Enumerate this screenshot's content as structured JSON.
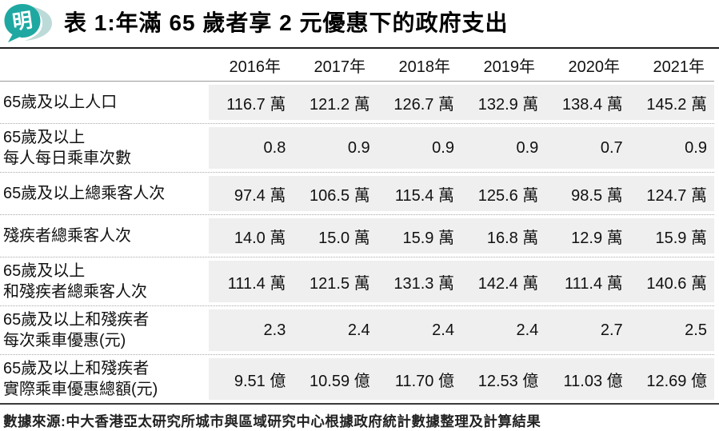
{
  "logo": {
    "char": "明"
  },
  "title": "表 1:年滿 65 歲者享 2 元優惠下的政府支出",
  "source": "數據來源:中大香港亞太研究所城市與區域研究中心根據政府統計數據整理及計算結果",
  "colors": {
    "logo_teal": "#1fa8a2",
    "logo_swoosh": "#bcdad8",
    "row_background": "#efefef",
    "rule_dark": "#1f1f1f"
  },
  "chart_data": {
    "type": "table",
    "title": "表 1:年滿 65 歲者享 2 元優惠下的政府支出",
    "columns": [
      "2016年",
      "2017年",
      "2018年",
      "2019年",
      "2020年",
      "2021年"
    ],
    "rows": [
      {
        "label_lines": [
          "65歲及以上人口"
        ],
        "values": [
          "116.7 萬",
          "121.2 萬",
          "126.7 萬",
          "132.9 萬",
          "138.4 萬",
          "145.2 萬"
        ]
      },
      {
        "label_lines": [
          "65歲及以上",
          "每人每日乘車次數"
        ],
        "values": [
          "0.8",
          "0.9",
          "0.9",
          "0.9",
          "0.7",
          "0.9"
        ]
      },
      {
        "label_lines": [
          "65歲及以上總乘客人次"
        ],
        "values": [
          "97.4 萬",
          "106.5 萬",
          "115.4 萬",
          "125.6 萬",
          "98.5 萬",
          "124.7 萬"
        ]
      },
      {
        "label_lines": [
          "殘疾者總乘客人次"
        ],
        "values": [
          "14.0 萬",
          "15.0 萬",
          "15.9 萬",
          "16.8 萬",
          "12.9 萬",
          "15.9 萬"
        ]
      },
      {
        "label_lines": [
          "65歲及以上",
          "和殘疾者總乘客人次"
        ],
        "values": [
          "111.4 萬",
          "121.5 萬",
          "131.3 萬",
          "142.4 萬",
          "111.4 萬",
          "140.6 萬"
        ]
      },
      {
        "label_lines": [
          "65歲及以上和殘疾者",
          "每次乘車優惠(元)"
        ],
        "values": [
          "2.3",
          "2.4",
          "2.4",
          "2.4",
          "2.7",
          "2.5"
        ]
      },
      {
        "label_lines": [
          "65歲及以上和殘疾者",
          "實際乘車優惠總額(元)"
        ],
        "values": [
          "9.51 億",
          "10.59 億",
          "11.70 億",
          "12.53 億",
          "11.03 億",
          "12.69 億"
        ]
      }
    ],
    "source": "數據來源:中大香港亞太研究所城市與區域研究中心根據政府統計數據整理及計算結果"
  }
}
